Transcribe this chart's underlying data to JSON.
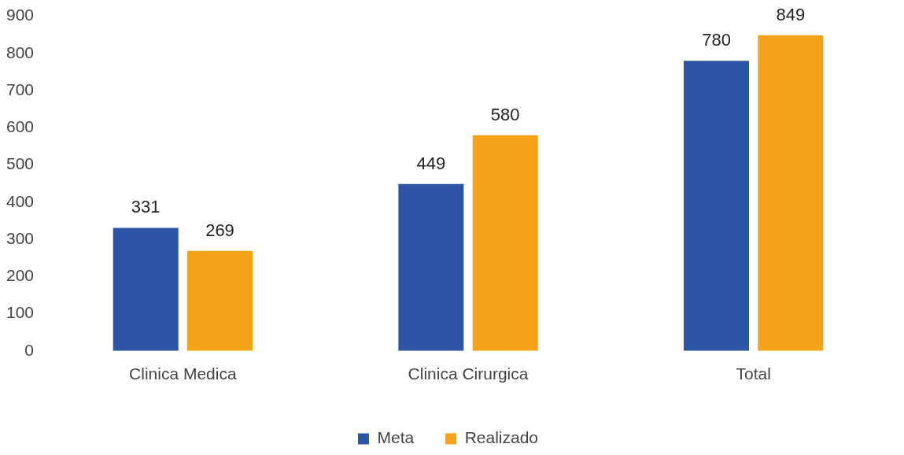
{
  "chart_data": {
    "type": "bar",
    "categories": [
      "Clinica Medica",
      "Clinica Cirurgica",
      "Total"
    ],
    "series": [
      {
        "name": "Meta",
        "color": "#2e55a5",
        "values": [
          331,
          449,
          780
        ]
      },
      {
        "name": "Realizado",
        "color": "#f5a21b",
        "values": [
          269,
          580,
          849
        ]
      }
    ],
    "ylim": [
      0,
      900
    ],
    "yticks": [
      0,
      100,
      200,
      300,
      400,
      500,
      600,
      700,
      800,
      900
    ],
    "grid": false,
    "legend": "bottom",
    "data_labels": true
  }
}
